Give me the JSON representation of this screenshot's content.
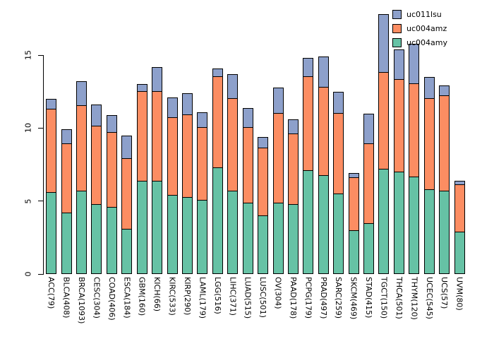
{
  "chart_data": {
    "type": "bar",
    "stacked": true,
    "title": "",
    "xlabel": "",
    "ylabel": "",
    "ylim": [
      0,
      18.2
    ],
    "yticks": [
      0,
      5,
      10,
      15
    ],
    "grid": false,
    "legend_position": "top-right",
    "background": "#ffffff",
    "bar_border_color": "#000000",
    "categories": [
      "ACC(79)",
      "BLCA(408)",
      "BRCA(1093)",
      "CESC(304)",
      "COAD(406)",
      "ESCA(184)",
      "GBM(160)",
      "KICH(66)",
      "KIRC(533)",
      "KIRP(290)",
      "LAML(179)",
      "LGG(516)",
      "LIHC(371)",
      "LUAD(515)",
      "LUSC(501)",
      "OV(304)",
      "PAAD(178)",
      "PCPG(179)",
      "PRAD(497)",
      "SARC(259)",
      "SKCM(469)",
      "STAD(415)",
      "TGCT(150)",
      "THCA(501)",
      "THYM(120)",
      "UCEC(545)",
      "UCS(57)",
      "UVM(80)"
    ],
    "series": [
      {
        "name": "uc011lsu",
        "color": "#8da0cb",
        "values": [
          0.7,
          1.0,
          1.7,
          1.5,
          1.2,
          1.6,
          0.5,
          1.7,
          1.4,
          1.5,
          1.1,
          0.6,
          1.7,
          1.4,
          0.8,
          1.8,
          1.0,
          1.3,
          2.1,
          1.5,
          0.3,
          2.1,
          4.0,
          2.1,
          2.8,
          1.5,
          0.7,
          0.3
        ]
      },
      {
        "name": "uc004amz",
        "color": "#fc8d62",
        "values": [
          5.8,
          4.8,
          5.9,
          5.4,
          5.2,
          4.9,
          6.2,
          6.2,
          5.4,
          5.7,
          5.0,
          6.3,
          6.4,
          5.2,
          4.7,
          6.2,
          4.9,
          6.5,
          6.1,
          5.6,
          3.7,
          5.5,
          6.7,
          6.4,
          6.4,
          6.3,
          6.6,
          3.3
        ]
      },
      {
        "name": "uc004amy",
        "color": "#66c2a5",
        "values": [
          5.6,
          4.2,
          5.7,
          4.8,
          4.6,
          3.1,
          6.4,
          6.4,
          5.4,
          5.3,
          5.1,
          7.3,
          5.7,
          4.9,
          4.0,
          4.9,
          4.8,
          7.1,
          6.8,
          5.5,
          3.0,
          3.5,
          7.2,
          7.0,
          6.7,
          5.8,
          5.7,
          2.9
        ]
      }
    ]
  }
}
